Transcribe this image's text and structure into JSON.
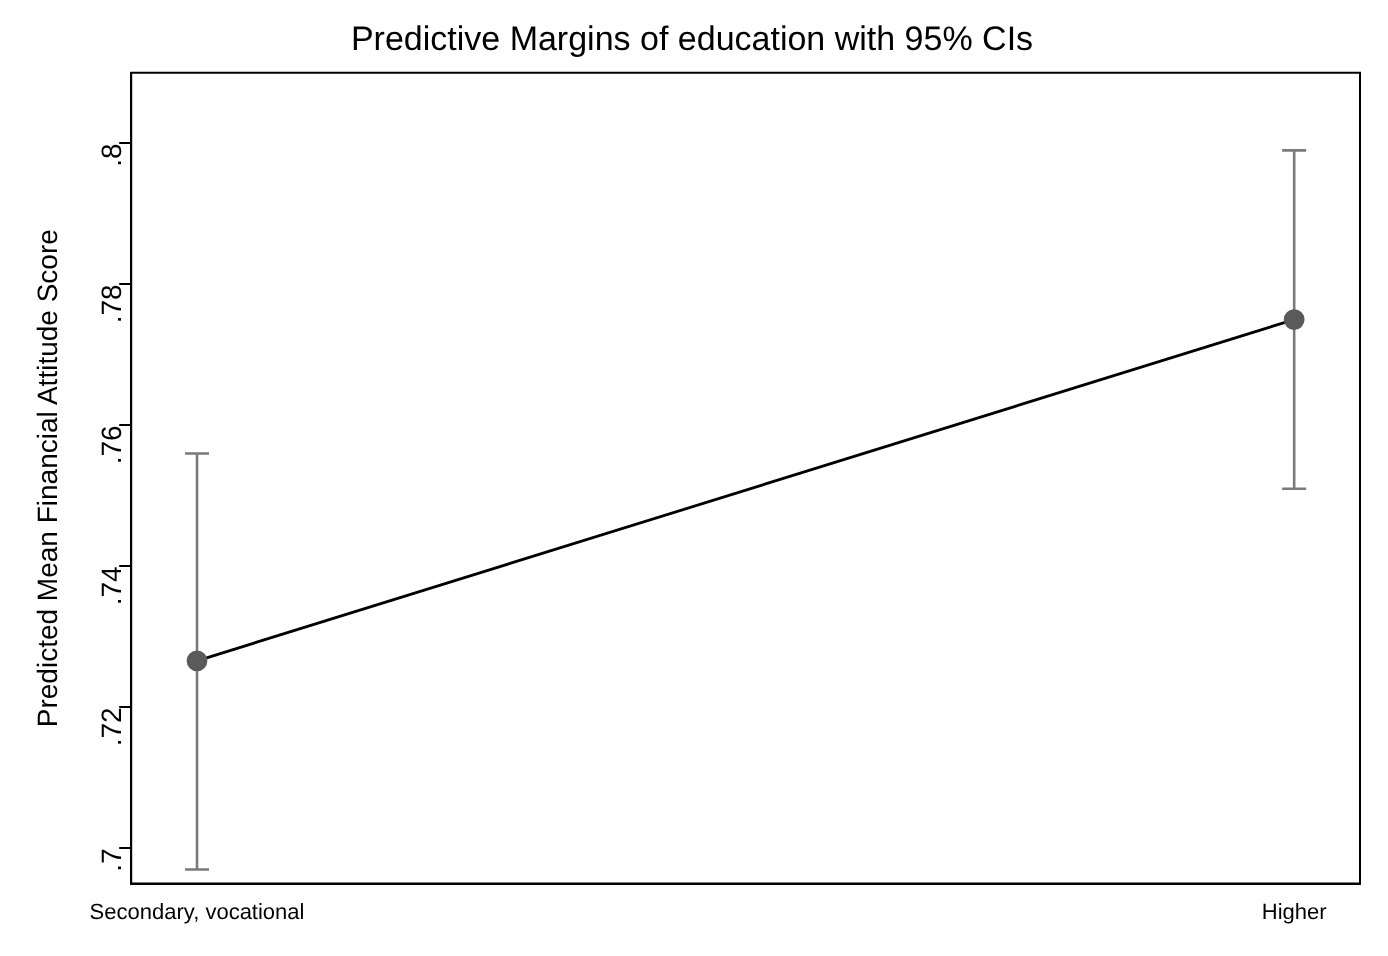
{
  "chart_data": {
    "type": "line",
    "title": "Predictive Margins of education with 95% CIs",
    "ylabel": "Predicted Mean Financial Attitude Score",
    "categories": [
      "Secondary, vocational",
      "Higher"
    ],
    "series": [
      {
        "color": "#000000",
        "values": [
          0.7266,
          0.775
        ],
        "errors": [
          [
            0.697,
            0.756
          ],
          [
            0.751,
            0.799
          ]
        ]
      }
    ],
    "ylim": [
      0.695,
      0.81
    ],
    "yticks": [
      {
        "value": 0.7,
        "label": ".7"
      },
      {
        "value": 0.72,
        "label": ".72"
      },
      {
        "value": 0.74,
        "label": ".74"
      },
      {
        "value": 0.76,
        "label": ".76"
      },
      {
        "value": 0.78,
        "label": ".78"
      },
      {
        "value": 0.8,
        "label": ".8"
      }
    ],
    "marker": "circle",
    "line_style": "solid",
    "grid": false,
    "legend": false
  }
}
